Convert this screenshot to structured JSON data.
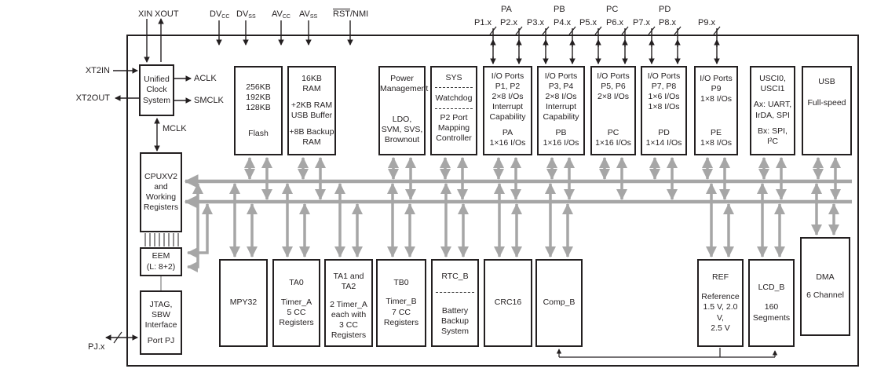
{
  "pins_left": {
    "xin": "XIN",
    "xout": "XOUT",
    "dvcc": {
      "b": "DV",
      "s": "CC"
    },
    "dvss": {
      "b": "DV",
      "s": "SS"
    },
    "avcc": {
      "b": "AV",
      "s": "CC"
    },
    "avss": {
      "b": "AV",
      "s": "SS"
    },
    "rst": {
      "b": "RST",
      "r": "/NMI"
    }
  },
  "port_groups": [
    "PA",
    "PB",
    "PC",
    "PD"
  ],
  "port_pins": [
    "P1.x",
    "P2.x",
    "P3.x",
    "P4.x",
    "P5.x",
    "P6.x",
    "P7.x",
    "P8.x",
    "P9.x"
  ],
  "clock_signals": {
    "xt2in": "XT2IN",
    "xt2out": "XT2OUT",
    "aclk": "ACLK",
    "smclk": "SMCLK",
    "mclk": "MCLK"
  },
  "jtag_pin": "PJ.x",
  "blocks": {
    "ucs": {
      "g1": [
        "Unified",
        "Clock",
        "System"
      ]
    },
    "flash": {
      "g1": [
        "256KB",
        "192KB",
        "128KB"
      ],
      "g2": [
        "Flash"
      ]
    },
    "ram": {
      "g1": [
        "16KB",
        "RAM"
      ],
      "g2": [
        "+2KB RAM",
        "USB Buffer"
      ],
      "g3": [
        "+8B Backup",
        "RAM"
      ]
    },
    "pmm": {
      "g1": [
        "Power",
        "Management"
      ],
      "g2": [
        "LDO,",
        "SVM, SVS,",
        "Brownout"
      ]
    },
    "sys": {
      "g1": [
        "SYS"
      ],
      "g2": [
        "Watchdog"
      ],
      "g3": [
        "P2 Port",
        "Mapping",
        "Controller"
      ]
    },
    "io12": {
      "g1": [
        "I/O Ports",
        "P1, P2",
        "2×8 I/Os",
        "Interrupt",
        "Capability"
      ],
      "g2": [
        "PA",
        "1×16 I/Os"
      ]
    },
    "io34": {
      "g1": [
        "I/O Ports",
        "P3, P4",
        "2×8 I/Os",
        "Interrupt",
        "Capability"
      ],
      "g2": [
        "PB",
        "1×16 I/Os"
      ]
    },
    "io56": {
      "g1": [
        "I/O Ports",
        "P5, P6",
        "2×8 I/Os"
      ],
      "g2": [
        "PC",
        "1×16 I/Os"
      ]
    },
    "io78": {
      "g1": [
        "I/O Ports",
        "P7, P8",
        "1×6 I/Os",
        "1×8 I/Os"
      ],
      "g2": [
        "PD",
        "1×14 I/Os"
      ]
    },
    "io9": {
      "g1": [
        "I/O Ports",
        "P9",
        "1×8 I/Os"
      ],
      "g2": [
        "PE",
        "1×8 I/Os"
      ]
    },
    "usci": {
      "g1": [
        "USCI0,",
        "USCI1"
      ],
      "g2": [
        "Ax: UART,",
        "IrDA, SPI"
      ],
      "g3": [
        "Bx: SPI, I²C"
      ]
    },
    "usb": {
      "g1": [
        "USB"
      ],
      "g2": [
        "Full-speed"
      ]
    },
    "cpu": {
      "g1": [
        "CPUXV2",
        "and",
        "Working",
        "Registers"
      ]
    },
    "eem": {
      "g1": [
        "EEM",
        "(L: 8+2)"
      ]
    },
    "jtag": {
      "g1": [
        "JTAG,",
        "SBW",
        "Interface"
      ],
      "g2": [
        "Port PJ"
      ]
    },
    "mpy": {
      "g1": [
        "MPY32"
      ]
    },
    "ta0": {
      "g1": [
        "TA0"
      ],
      "g2": [
        "Timer_A",
        "5 CC",
        "Registers"
      ]
    },
    "ta12": {
      "g1": [
        "TA1 and",
        "TA2"
      ],
      "g2": [
        "2 Timer_A",
        "each with",
        "3 CC",
        "Registers"
      ]
    },
    "tb0": {
      "g1": [
        "TB0"
      ],
      "g2": [
        "Timer_B",
        "7 CC",
        "Registers"
      ]
    },
    "rtc": {
      "g1": [
        "RTC_B"
      ],
      "g2": [
        "Battery",
        "Backup",
        "System"
      ]
    },
    "crc": {
      "g1": [
        "CRC16"
      ]
    },
    "comp": {
      "g1": [
        "Comp_B"
      ]
    },
    "ref": {
      "g1": [
        "REF"
      ],
      "g2": [
        "Reference",
        "1.5 V, 2.0 V,",
        "2.5 V"
      ]
    },
    "lcd": {
      "g1": [
        "LCD_B"
      ],
      "g2": [
        "160",
        "Segments"
      ]
    },
    "dma": {
      "g1": [
        "DMA"
      ],
      "g2": [
        "6 Channel"
      ]
    }
  },
  "colors": {
    "line": "#231f20",
    "bus": "#a6a6a6",
    "background": "#ffffff"
  }
}
